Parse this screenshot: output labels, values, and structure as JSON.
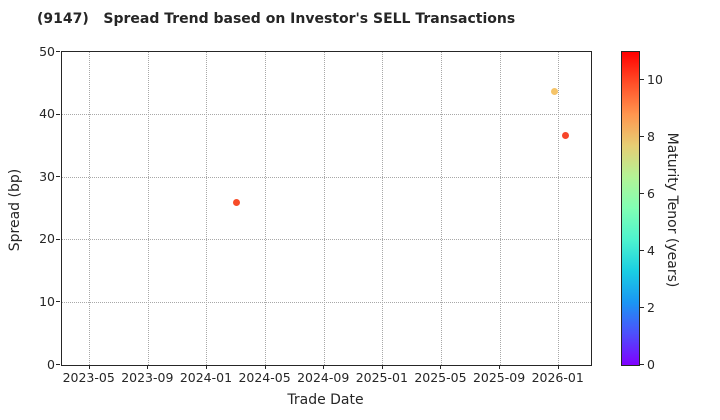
{
  "title": "(9147)   Spread Trend based on Investor's SELL Transactions",
  "chart_data": {
    "type": "scatter",
    "title": "(9147)   Spread Trend based on Investor's SELL Transactions",
    "xlabel": "Trade Date",
    "ylabel": "Spread (bp)",
    "ylim": [
      0,
      50
    ],
    "yticks": [
      0,
      10,
      20,
      30,
      40,
      50
    ],
    "xticks": [
      "2023-05",
      "2023-09",
      "2024-01",
      "2024-05",
      "2024-09",
      "2025-01",
      "2025-05",
      "2025-09",
      "2026-01"
    ],
    "grid": true,
    "gridline_color": "#a8a8a8",
    "points": [
      {
        "date": "2024-03-01",
        "spread": 26.0,
        "tenor": 10,
        "color": "#f74c28"
      },
      {
        "date": "2025-12-22",
        "spread": 43.7,
        "tenor": 8,
        "color": "#f5c469"
      },
      {
        "date": "2026-01-15",
        "spread": 36.6,
        "tenor": 10,
        "color": "#f7452a"
      }
    ],
    "colorbar": {
      "label": "Maturity Tenor (years)",
      "min": 0,
      "max": 11,
      "ticks": [
        0,
        2,
        4,
        6,
        8,
        10
      ],
      "gradient_stops": [
        "#8000ff",
        "#4d4ffc",
        "#1a96f3",
        "#1acee3",
        "#4df3ce",
        "#80ffb4",
        "#b3f396",
        "#e6ce74",
        "#ff964f",
        "#ff4f28",
        "#ff0000"
      ]
    }
  }
}
